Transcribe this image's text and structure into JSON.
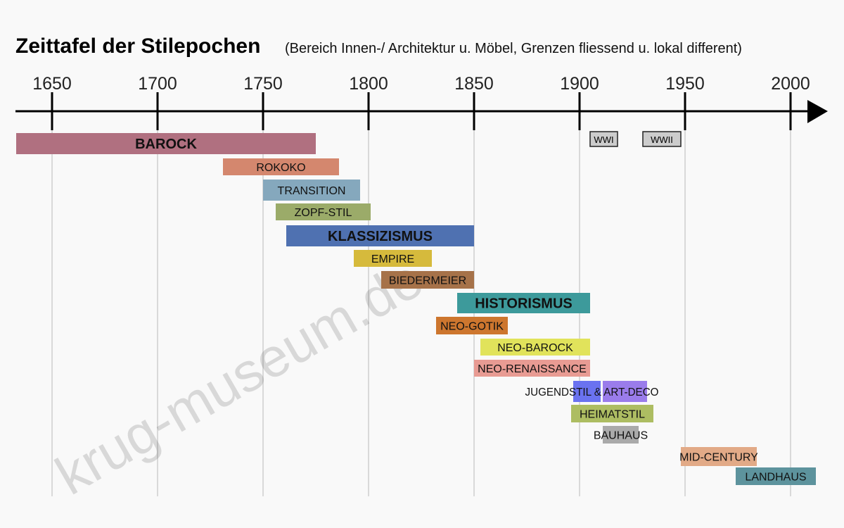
{
  "chart_data": {
    "type": "timeline",
    "title": "Zeittafel der Stilepochen",
    "subtitle": "(Bereich Innen-/ Architektur u. Möbel, Grenzen fliessend u. lokal different)",
    "x_ticks": [
      1650,
      1700,
      1750,
      1800,
      1850,
      1900,
      1950,
      2000
    ],
    "xlim": [
      1633,
      2018
    ],
    "grid": true,
    "watermark": "krug-museum.de",
    "epochs": [
      {
        "label": "BAROCK",
        "start": 1633,
        "end": 1775,
        "color": "#b07080",
        "emphasis": true
      },
      {
        "label": "ROKOKO",
        "start": 1731,
        "end": 1786,
        "color": "#d4876e",
        "emphasis": false
      },
      {
        "label": "TRANSITION",
        "start": 1750,
        "end": 1796,
        "color": "#85a8bd",
        "emphasis": false
      },
      {
        "label": "ZOPF-STIL",
        "start": 1756,
        "end": 1801,
        "color": "#9bab69",
        "emphasis": false
      },
      {
        "label": "KLASSIZISMUS",
        "start": 1761,
        "end": 1850,
        "color": "#4f71b1",
        "emphasis": true
      },
      {
        "label": "EMPIRE",
        "start": 1793,
        "end": 1830,
        "color": "#d6ba3c",
        "emphasis": false
      },
      {
        "label": "BIEDERMEIER",
        "start": 1806,
        "end": 1850,
        "color": "#a67249",
        "emphasis": false
      },
      {
        "label": "HISTORISMUS",
        "start": 1842,
        "end": 1905,
        "color": "#3d9a9b",
        "emphasis": true
      },
      {
        "label": "NEO-GOTIK",
        "start": 1832,
        "end": 1866,
        "color": "#cd762e",
        "emphasis": false
      },
      {
        "label": "NEO-BAROCK",
        "start": 1853,
        "end": 1905,
        "color": "#e1e35b",
        "emphasis": false
      },
      {
        "label": "NEO-RENAISSANCE",
        "start": 1850,
        "end": 1905,
        "color": "#e89b93",
        "emphasis": false
      },
      {
        "label": "HEIMATSTIL",
        "start": 1896,
        "end": 1935,
        "color": "#adbd62",
        "emphasis": false
      },
      {
        "label": "BAUHAUS",
        "start": 1911,
        "end": 1928,
        "color": "#aaaaaa",
        "emphasis": false
      },
      {
        "label": "MID-CENTURY",
        "start": 1948,
        "end": 1984,
        "color": "#e2aa87",
        "emphasis": false
      },
      {
        "label": "LANDHAUS",
        "start": 1974,
        "end": 2012,
        "color": "#5d939d",
        "emphasis": false
      }
    ],
    "combined_epoch": {
      "label": "JUGENDSTIL & ART-DECO",
      "segments": [
        {
          "start": 1897,
          "end": 1910,
          "color": "#6a72f0"
        },
        {
          "start": 1911,
          "end": 1932,
          "color": "#9a7ceb"
        }
      ]
    },
    "events": [
      {
        "label": "WWI",
        "start": 1905,
        "end": 1918
      },
      {
        "label": "WWII",
        "start": 1930,
        "end": 1948
      }
    ]
  }
}
